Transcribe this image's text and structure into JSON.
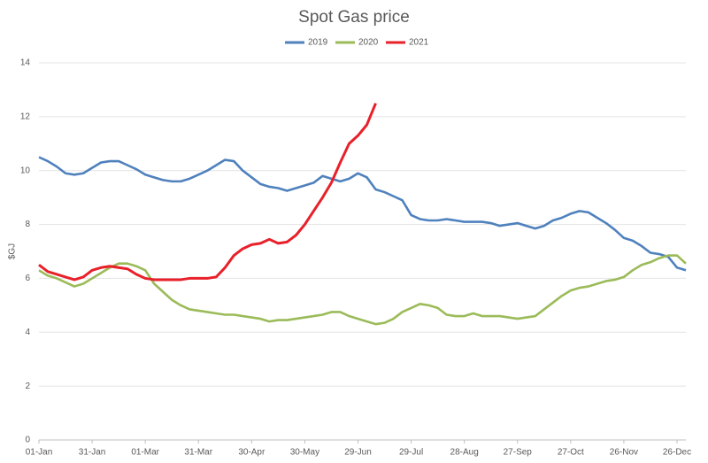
{
  "chart_data": {
    "type": "line",
    "title": "Spot Gas price",
    "ylabel": "$GJ",
    "x": [
      0,
      5,
      10,
      15,
      20,
      25,
      30,
      35,
      40,
      45,
      50,
      55,
      60,
      65,
      70,
      75,
      80,
      85,
      90,
      95,
      100,
      105,
      110,
      115,
      120,
      125,
      130,
      135,
      140,
      145,
      150,
      155,
      160,
      165,
      170,
      175,
      180,
      185,
      190,
      195,
      200,
      205,
      210,
      215,
      220,
      225,
      230,
      235,
      240,
      245,
      250,
      255,
      260,
      265,
      270,
      275,
      280,
      285,
      290,
      295,
      300,
      305,
      310,
      315,
      320,
      325,
      330,
      335,
      340,
      345,
      350,
      355,
      360,
      365
    ],
    "xlim": [
      0,
      365
    ],
    "xticks": [
      {
        "value": 0,
        "label": "01-Jan"
      },
      {
        "value": 30,
        "label": "31-Jan"
      },
      {
        "value": 60,
        "label": "01-Mar"
      },
      {
        "value": 90,
        "label": "31-Mar"
      },
      {
        "value": 120,
        "label": "30-Apr"
      },
      {
        "value": 150,
        "label": "30-May"
      },
      {
        "value": 180,
        "label": "29-Jun"
      },
      {
        "value": 210,
        "label": "29-Jul"
      },
      {
        "value": 240,
        "label": "28-Aug"
      },
      {
        "value": 270,
        "label": "27-Sep"
      },
      {
        "value": 300,
        "label": "27-Oct"
      },
      {
        "value": 330,
        "label": "26-Nov"
      },
      {
        "value": 360,
        "label": "26-Dec"
      }
    ],
    "ylim": [
      0,
      14
    ],
    "yticks": [
      0,
      2,
      4,
      6,
      8,
      10,
      12,
      14
    ],
    "grid": true,
    "legend": "top",
    "series": [
      {
        "name": "2019",
        "color": "#4f81bd",
        "values": [
          10.5,
          10.35,
          10.15,
          9.9,
          9.85,
          9.9,
          10.1,
          10.3,
          10.35,
          10.35,
          10.2,
          10.05,
          9.85,
          9.75,
          9.65,
          9.6,
          9.6,
          9.7,
          9.85,
          10.0,
          10.2,
          10.4,
          10.35,
          10.0,
          9.75,
          9.5,
          9.4,
          9.35,
          9.25,
          9.35,
          9.45,
          9.55,
          9.8,
          9.7,
          9.6,
          9.7,
          9.9,
          9.75,
          9.3,
          9.2,
          9.05,
          8.9,
          8.35,
          8.2,
          8.15,
          8.15,
          8.2,
          8.15,
          8.1,
          8.1,
          8.1,
          8.05,
          7.95,
          8.0,
          8.05,
          7.95,
          7.85,
          7.95,
          8.15,
          8.25,
          8.4,
          8.5,
          8.45,
          8.25,
          8.05,
          7.8,
          7.5,
          7.4,
          7.2,
          6.95,
          6.9,
          6.8,
          6.4,
          6.3
        ]
      },
      {
        "name": "2020",
        "color": "#9bbb59",
        "values": [
          6.3,
          6.1,
          6.0,
          5.85,
          5.7,
          5.8,
          6.0,
          6.2,
          6.4,
          6.55,
          6.55,
          6.45,
          6.3,
          5.8,
          5.5,
          5.2,
          5.0,
          4.85,
          4.8,
          4.75,
          4.7,
          4.65,
          4.65,
          4.6,
          4.55,
          4.5,
          4.4,
          4.45,
          4.45,
          4.5,
          4.55,
          4.6,
          4.65,
          4.75,
          4.75,
          4.6,
          4.5,
          4.4,
          4.3,
          4.35,
          4.5,
          4.75,
          4.9,
          5.05,
          5.0,
          4.9,
          4.65,
          4.6,
          4.6,
          4.7,
          4.6,
          4.6,
          4.6,
          4.55,
          4.5,
          4.55,
          4.6,
          4.85,
          5.1,
          5.35,
          5.55,
          5.65,
          5.7,
          5.8,
          5.9,
          5.95,
          6.05,
          6.3,
          6.5,
          6.6,
          6.75,
          6.85,
          6.85,
          6.55
        ]
      },
      {
        "name": "2021",
        "color": "#e8202a",
        "values": [
          6.5,
          6.25,
          6.15,
          6.05,
          5.95,
          6.05,
          6.3,
          6.4,
          6.45,
          6.4,
          6.35,
          6.15,
          6.0,
          5.95,
          5.95,
          5.95,
          5.95,
          6.0,
          6.0,
          6.0,
          6.05,
          6.4,
          6.85,
          7.1,
          7.25,
          7.3,
          7.45,
          7.3,
          7.35,
          7.6,
          8.0,
          8.5,
          9.0,
          9.55,
          10.3,
          11.0,
          11.3,
          11.7,
          12.5,
          null,
          null,
          null,
          null,
          null,
          null,
          null,
          null,
          null,
          null,
          null,
          null,
          null,
          null,
          null,
          null,
          null,
          null,
          null,
          null,
          null,
          null,
          null,
          null,
          null,
          null,
          null,
          null,
          null,
          null,
          null,
          null,
          null,
          null,
          null
        ]
      }
    ]
  }
}
